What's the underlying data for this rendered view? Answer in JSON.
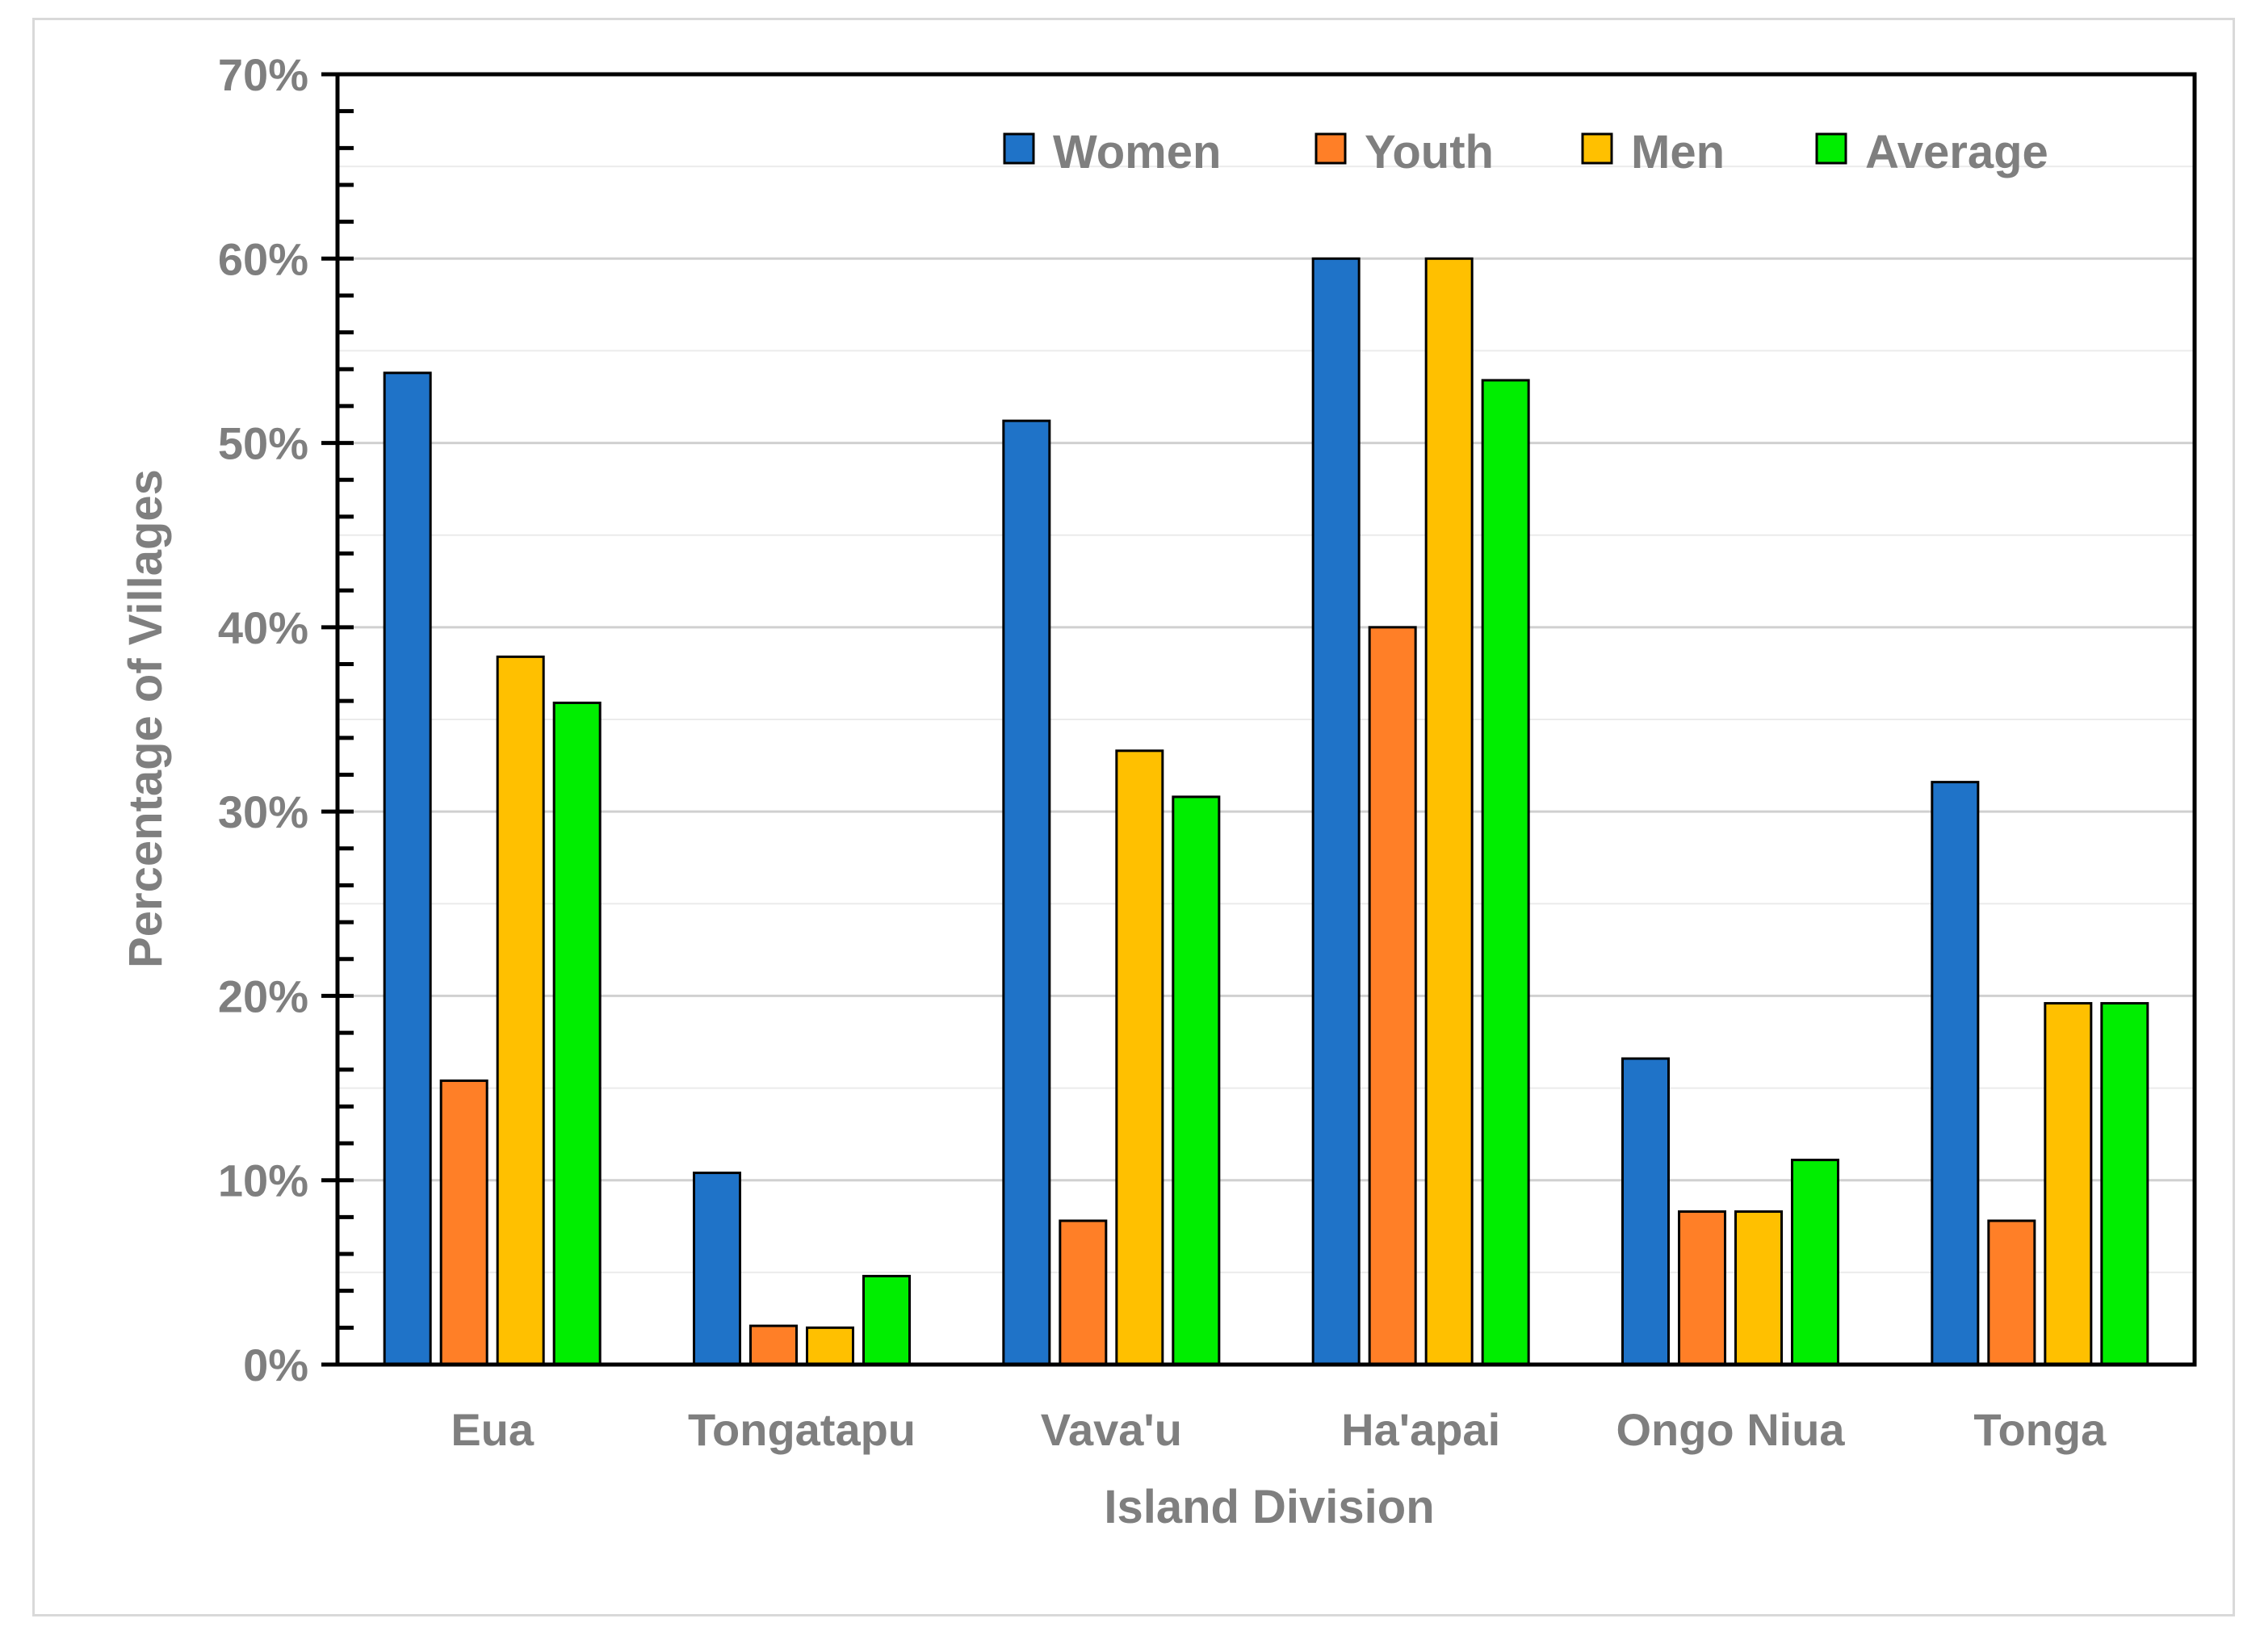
{
  "chart_data": {
    "type": "bar",
    "title": "",
    "xlabel": "Island Division",
    "ylabel": "Percentage of Villages",
    "ylim": [
      0,
      70
    ],
    "ytick_step": 10,
    "ytick_suffix": "%",
    "ytick_labels": [
      "0%",
      "10%",
      "20%",
      "30%",
      "40%",
      "50%",
      "60%",
      "70%"
    ],
    "grid": true,
    "legend_position": "top-right",
    "categories": [
      "Eua",
      "Tongatapu",
      "Vava'u",
      "Ha'apai",
      "Ongo Niua",
      "Tonga"
    ],
    "series": [
      {
        "name": "Women",
        "color": "#1f73c8",
        "values": [
          53.8,
          10.4,
          51.2,
          60.0,
          16.6,
          31.6
        ]
      },
      {
        "name": "Youth",
        "color": "#ff7f27",
        "values": [
          15.4,
          2.1,
          7.8,
          40.0,
          8.3,
          7.8
        ]
      },
      {
        "name": "Men",
        "color": "#ffc000",
        "values": [
          38.4,
          2.0,
          33.3,
          60.0,
          8.3,
          19.6
        ]
      },
      {
        "name": "Average",
        "color": "#00ee00",
        "values": [
          35.9,
          4.8,
          30.8,
          53.4,
          11.1,
          19.6
        ]
      }
    ]
  }
}
